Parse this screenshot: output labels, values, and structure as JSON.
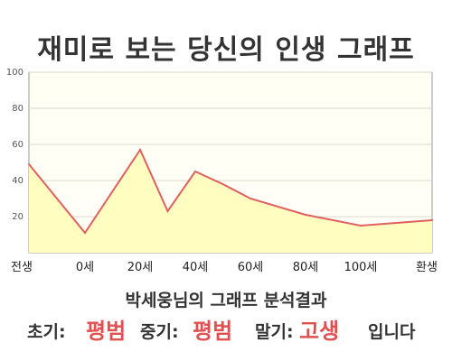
{
  "title": "재미로 보는 당신의 인생 그래프",
  "analysis_title": "박세웅님의 그래프 분석결과",
  "summary": {
    "early_label": "초기:",
    "early_value": "평범",
    "mid_label": "중기:",
    "mid_value": "평범",
    "late_label": "말기:",
    "late_value": "고생",
    "suffix": "입니다"
  },
  "colors": {
    "line": "#e06060",
    "fill": "#fffdc0",
    "plot_bg_top": "#fffff0",
    "grid": "#d8d8c8",
    "value_text": "#e05050"
  },
  "chart_data": {
    "type": "area",
    "title": "",
    "xlabel": "",
    "ylabel": "",
    "x_ticks": [
      "전생",
      "0세",
      "20세",
      "40세",
      "60세",
      "80세",
      "100세",
      "환생"
    ],
    "y_ticks": [
      "20",
      "40",
      "60",
      "80",
      "100"
    ],
    "ylim": [
      0,
      100
    ],
    "grid": true,
    "series": [
      {
        "points": [
          {
            "x": "전생",
            "y": 49
          },
          {
            "x": "0세",
            "y": 11
          },
          {
            "x": "20세",
            "y": 57
          },
          {
            "x": "30세",
            "y": 23
          },
          {
            "x": "40세",
            "y": 45
          },
          {
            "x": "50세",
            "y": 38
          },
          {
            "x": "60세",
            "y": 30
          },
          {
            "x": "80세",
            "y": 21
          },
          {
            "x": "100세",
            "y": 15
          },
          {
            "x": "환생",
            "y": 18
          }
        ]
      }
    ]
  }
}
